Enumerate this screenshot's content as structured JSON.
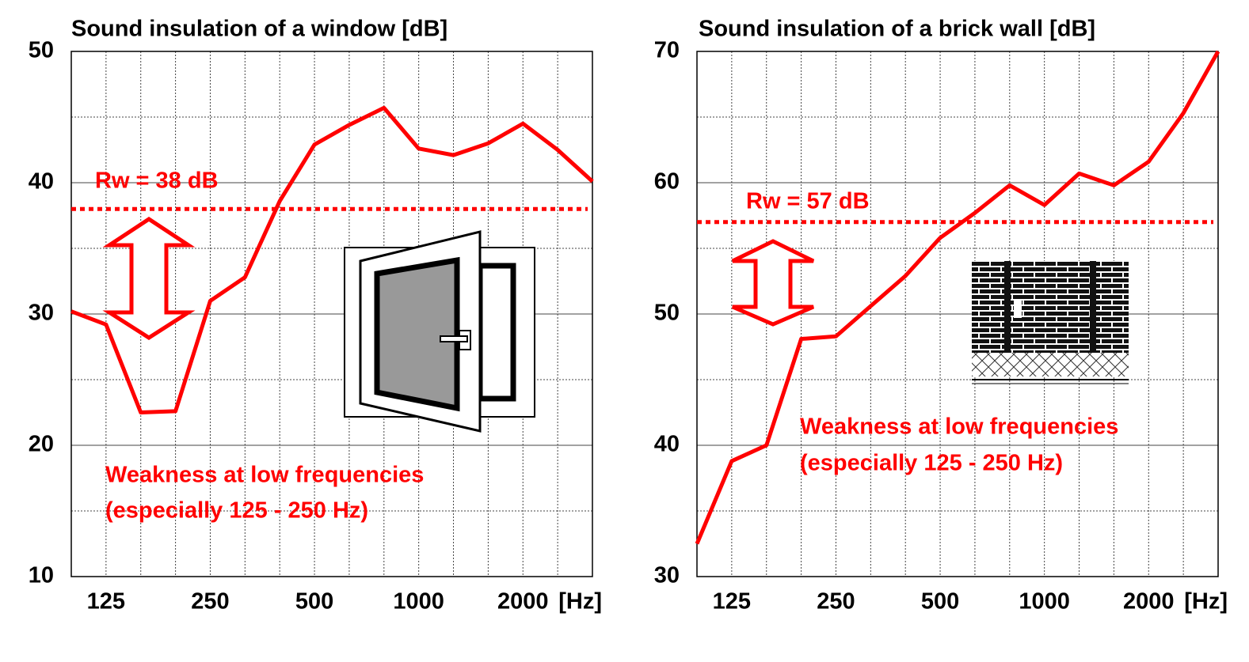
{
  "chart_data": [
    {
      "type": "line",
      "title": "Sound insulation of a window [dB]",
      "categories": [
        null,
        "125",
        null,
        null,
        "250",
        null,
        null,
        "500",
        null,
        null,
        "1000",
        null,
        null,
        "2000",
        null,
        null
      ],
      "x_label": "[Hz]",
      "series": [
        {
          "color": "#ff0000",
          "values": [
            30.2,
            29.2,
            22.5,
            22.6,
            31.0,
            32.8,
            38.6,
            42.9,
            44.4,
            45.7,
            42.6,
            42.1,
            43.0,
            44.5,
            42.5,
            40.1
          ]
        }
      ],
      "ylim": [
        10,
        50
      ],
      "yticks": [
        10,
        20,
        30,
        40,
        50
      ],
      "y_minor_ticks": [
        15,
        25,
        35,
        45
      ],
      "grid": true,
      "reference": {
        "value": 38,
        "label": "Rw = 38 dB",
        "color": "#ff0000"
      },
      "annotations": [
        "Weakness at low frequencies",
        "(especially 125 - 250 Hz)"
      ]
    },
    {
      "type": "line",
      "title": "Sound insulation of a brick wall [dB]",
      "categories": [
        null,
        "125",
        null,
        null,
        "250",
        null,
        null,
        "500",
        null,
        null,
        "1000",
        null,
        null,
        "2000",
        null,
        null
      ],
      "x_label": "[Hz]",
      "series": [
        {
          "color": "#ff0000",
          "values": [
            32.5,
            38.8,
            40.0,
            48.1,
            48.3,
            50.6,
            52.9,
            55.8,
            57.7,
            59.8,
            58.3,
            60.7,
            59.8,
            61.6,
            65.3,
            70.0
          ]
        }
      ],
      "ylim": [
        30,
        70
      ],
      "yticks": [
        30,
        40,
        50,
        60,
        70
      ],
      "y_minor_ticks": [
        35,
        45,
        55,
        65
      ],
      "grid": true,
      "reference": {
        "value": 57,
        "label": "Rw = 57 dB",
        "color": "#ff0000"
      },
      "annotations": [
        "Weakness at low frequencies",
        "(especially 125 - 250 Hz)"
      ]
    }
  ]
}
